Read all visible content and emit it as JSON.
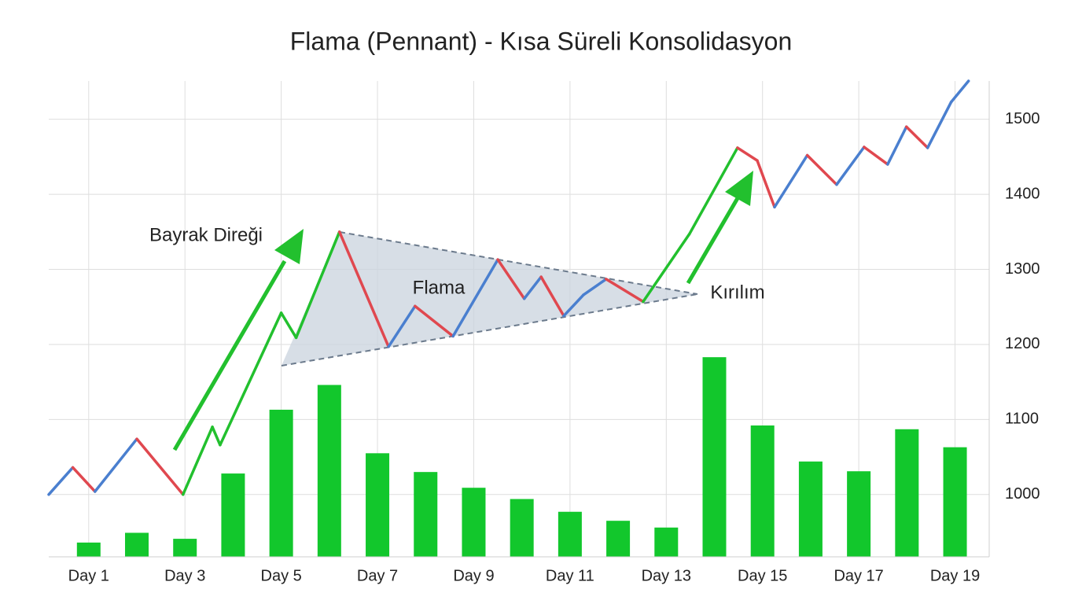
{
  "chart_data": {
    "type": "pennant",
    "title": "Flama (Pennant) - Kısa Süreli Konsolidasyon",
    "annotations": [
      "Bayrak Direği",
      "Flama",
      "Kırılım"
    ],
    "xlim": [
      0.17,
      19.71
    ],
    "xticks": [
      {
        "value": 1,
        "label": "Day 1"
      },
      {
        "value": 3,
        "label": "Day 3"
      },
      {
        "value": 5,
        "label": "Day 5"
      },
      {
        "value": 7,
        "label": "Day 7"
      },
      {
        "value": 9,
        "label": "Day 9"
      },
      {
        "value": 11,
        "label": "Day 11"
      },
      {
        "value": 13,
        "label": "Day 13"
      },
      {
        "value": 15,
        "label": "Day 15"
      },
      {
        "value": 17,
        "label": "Day 17"
      },
      {
        "value": 19,
        "label": "Day 19"
      }
    ],
    "ylim": [
      917,
      1551
    ],
    "yticks": [
      1000,
      1100,
      1200,
      1300,
      1400,
      1500
    ],
    "grid": true,
    "volume": {
      "color": "#12c72c",
      "x": [
        1,
        2,
        3,
        4,
        5,
        6,
        7,
        8,
        9,
        10,
        11,
        12,
        13,
        14,
        15,
        16,
        17,
        18,
        19
      ],
      "values": [
        936,
        949,
        941,
        1028,
        1113,
        1146,
        1055,
        1030,
        1009,
        994,
        977,
        965,
        956,
        1183,
        1092,
        1044,
        1031,
        1087,
        1063
      ]
    },
    "price": {
      "colors": {
        "up": "#4a7fcf",
        "down": "#e0484f",
        "pole": "#22c02e"
      },
      "x": [
        0.17,
        0.67,
        1.13,
        2.0,
        2.96,
        3.57,
        3.73,
        5.0,
        5.31,
        6.21,
        7.23,
        7.78,
        8.57,
        9.5,
        10.05,
        10.4,
        10.87,
        11.28,
        11.75,
        12.52,
        13.48,
        14.48,
        14.89,
        15.25,
        15.93,
        16.54,
        17.11,
        17.6,
        17.99,
        18.43,
        18.92,
        19.28
      ],
      "values": [
        1000,
        1036,
        1004,
        1074,
        1000,
        1090,
        1066,
        1242,
        1209,
        1350,
        1197,
        1251,
        1211,
        1313,
        1261,
        1290,
        1238,
        1266,
        1287,
        1257,
        1347,
        1462,
        1445,
        1383,
        1452,
        1413,
        1463,
        1440,
        1490,
        1462,
        1523,
        1551
      ],
      "segments": [
        "up",
        "down",
        "up",
        "down",
        "pole",
        "pole",
        "pole",
        "pole",
        "pole",
        "down",
        "up",
        "down",
        "up",
        "down",
        "up",
        "down",
        "up",
        "up",
        "down",
        "pole",
        "pole",
        "down",
        "down",
        "up",
        "down",
        "up",
        "down",
        "up",
        "down",
        "up",
        "up"
      ]
    }
  }
}
